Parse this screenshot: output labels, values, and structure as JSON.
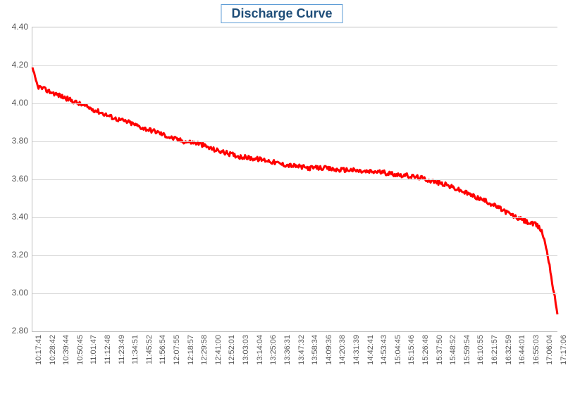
{
  "chart": {
    "type": "line",
    "title": "Discharge Curve",
    "title_color": "#1f4e79",
    "title_fontsize": 18,
    "title_border_color": "#5b9bd5",
    "background_color": "#ffffff",
    "grid_color": "#d9d9d9",
    "axis_color": "#bfbfbf",
    "label_color": "#595959",
    "label_fontsize": 12,
    "line_color": "#ff0000",
    "line_width": 3,
    "ylim": [
      2.8,
      4.4
    ],
    "ytick_step": 0.2,
    "y_ticks": [
      "2.80",
      "3.00",
      "3.20",
      "3.40",
      "3.60",
      "3.80",
      "4.00",
      "4.20",
      "4.40"
    ],
    "x_labels": [
      "10:17:41",
      "10:28:42",
      "10:39:44",
      "10:50:45",
      "11:01:47",
      "11:12:48",
      "11:23:49",
      "11:34:51",
      "11:45:52",
      "11:56:54",
      "12:07:55",
      "12:18:57",
      "12:29:58",
      "12:41:00",
      "12:52:01",
      "13:03:03",
      "13:14:04",
      "13:25:06",
      "13:36:31",
      "13:47:32",
      "13:58:34",
      "14:09:36",
      "14:20:38",
      "14:31:39",
      "14:42:41",
      "14:53:43",
      "15:04:45",
      "15:15:46",
      "15:26:48",
      "15:37:50",
      "15:48:52",
      "15:59:54",
      "16:10:55",
      "16:21:57",
      "16:32:59",
      "16:44:01",
      "16:55:03",
      "17:06:04",
      "17:17:06"
    ],
    "series": [
      {
        "x": 0.0,
        "y": 4.18
      },
      {
        "x": 0.01,
        "y": 4.09
      },
      {
        "x": 0.026,
        "y": 4.07
      },
      {
        "x": 0.053,
        "y": 4.04
      },
      {
        "x": 0.079,
        "y": 4.01
      },
      {
        "x": 0.105,
        "y": 3.98
      },
      {
        "x": 0.132,
        "y": 3.95
      },
      {
        "x": 0.158,
        "y": 3.92
      },
      {
        "x": 0.184,
        "y": 3.9
      },
      {
        "x": 0.211,
        "y": 3.87
      },
      {
        "x": 0.237,
        "y": 3.85
      },
      {
        "x": 0.263,
        "y": 3.82
      },
      {
        "x": 0.289,
        "y": 3.8
      },
      {
        "x": 0.316,
        "y": 3.79
      },
      {
        "x": 0.342,
        "y": 3.76
      },
      {
        "x": 0.368,
        "y": 3.74
      },
      {
        "x": 0.395,
        "y": 3.72
      },
      {
        "x": 0.421,
        "y": 3.71
      },
      {
        "x": 0.447,
        "y": 3.7
      },
      {
        "x": 0.474,
        "y": 3.68
      },
      {
        "x": 0.5,
        "y": 3.67
      },
      {
        "x": 0.526,
        "y": 3.66
      },
      {
        "x": 0.553,
        "y": 3.66
      },
      {
        "x": 0.579,
        "y": 3.65
      },
      {
        "x": 0.605,
        "y": 3.65
      },
      {
        "x": 0.632,
        "y": 3.64
      },
      {
        "x": 0.658,
        "y": 3.64
      },
      {
        "x": 0.684,
        "y": 3.63
      },
      {
        "x": 0.711,
        "y": 3.62
      },
      {
        "x": 0.737,
        "y": 3.61
      },
      {
        "x": 0.763,
        "y": 3.59
      },
      {
        "x": 0.789,
        "y": 3.57
      },
      {
        "x": 0.816,
        "y": 3.54
      },
      {
        "x": 0.842,
        "y": 3.51
      },
      {
        "x": 0.868,
        "y": 3.48
      },
      {
        "x": 0.895,
        "y": 3.44
      },
      {
        "x": 0.921,
        "y": 3.4
      },
      {
        "x": 0.947,
        "y": 3.37
      },
      {
        "x": 0.96,
        "y": 3.36
      },
      {
        "x": 0.97,
        "y": 3.33
      },
      {
        "x": 0.978,
        "y": 3.25
      },
      {
        "x": 0.985,
        "y": 3.15
      },
      {
        "x": 0.992,
        "y": 3.02
      },
      {
        "x": 1.0,
        "y": 2.9
      }
    ],
    "noise_amplitude": 0.012
  }
}
